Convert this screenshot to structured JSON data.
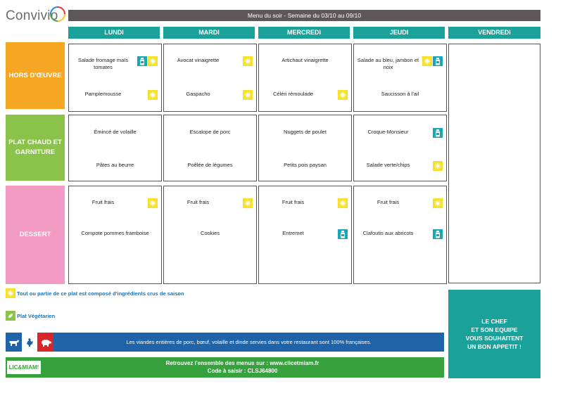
{
  "logo": {
    "text": "Convivio"
  },
  "title": "Menu du soir - Semaine du 03/10 au 09/10",
  "days": [
    "LUNDI",
    "MARDI",
    "MERCREDI",
    "JEUDI",
    "VENDREDI"
  ],
  "categories": {
    "hors": "HORS D'ŒUVRE",
    "plat_line1": "PLAT CHAUD ET",
    "plat_line2": "GARNITURE",
    "dessert": "DESSERT"
  },
  "menu": {
    "hors": [
      {
        "item1": "Salade fromage maïs tomates",
        "icons1": [
          "jar-icon",
          "sun-icon"
        ],
        "item2": "Pamplemousse",
        "icons2": [
          "sun-icon"
        ]
      },
      {
        "item1": "Avocat vinaigrette",
        "icons1": [
          "sun-icon"
        ],
        "item2": "Gaspacho",
        "icons2": [
          "sun-icon"
        ]
      },
      {
        "item1": "Artichaut vinaigrette",
        "icons1": [],
        "item2": "Céléri rémoulade",
        "icons2": [
          "sun-icon"
        ]
      },
      {
        "item1": "Salade au bleu, jambon et noix",
        "icons1": [
          "sun-icon",
          "jar-icon"
        ],
        "item2": "Saucisson à l'ail",
        "icons2": []
      }
    ],
    "plat": [
      {
        "item1": "Émincé de volaille",
        "icons1": [],
        "item2": "Pâtes au beurre",
        "icons2": []
      },
      {
        "item1": "Escalope de porc",
        "icons1": [],
        "item2": "Poêlée de légumes",
        "icons2": []
      },
      {
        "item1": "Nuggets de poulet",
        "icons1": [],
        "item2": "Petits pois paysan",
        "icons2": []
      },
      {
        "item1": "Croque-Monsieur",
        "icons1": [
          "jar-icon"
        ],
        "item2": "Salade verte/chips",
        "icons2": [
          "sun-icon"
        ]
      }
    ],
    "dessert": [
      {
        "item1": "Fruit frais",
        "icons1": [
          "sun-icon"
        ],
        "item2": "Compote pommes framboise",
        "icons2": []
      },
      {
        "item1": "Fruit frais",
        "icons1": [
          "sun-icon"
        ],
        "item2": "Cookies",
        "icons2": []
      },
      {
        "item1": "Fruit frais",
        "icons1": [
          "sun-icon"
        ],
        "item2": "Entremet",
        "icons2": [
          "jar-icon"
        ]
      },
      {
        "item1": "Fruit frais",
        "icons1": [
          "sun-icon"
        ],
        "item2": "Clafoutis aux abricots",
        "icons2": [
          "jar-icon"
        ]
      }
    ]
  },
  "legend": {
    "seasonal": "Tout ou partie de ce plat est composé d'ingrédients crus de saison",
    "vegetarian": "Plat Végétarien"
  },
  "banner_meat": "Les viandes entières de porc, bœuf, volaille et dinde servies dans votre restaurant sont 100% françaises.",
  "licmiam": "LIC&MIAM!",
  "banner_site": "Retrouvez l'ensemble des menus sur : www.clicetmiam.fr",
  "banner_code": "Code à saisir : CLSJ64800",
  "chef": [
    "LE CHEF",
    "ET SON EQUIPE",
    "VOUS SOUHAITENT",
    "UN BON APPETIT !"
  ],
  "colors": {
    "teal": "#1aa29a",
    "orange": "#f5a623",
    "green": "#8bc34a",
    "pink": "#f39ac3",
    "sun": "#f7e02a",
    "jar": "#18a6b8",
    "blue": "#1f64a8",
    "banner_green": "#37a23d"
  }
}
